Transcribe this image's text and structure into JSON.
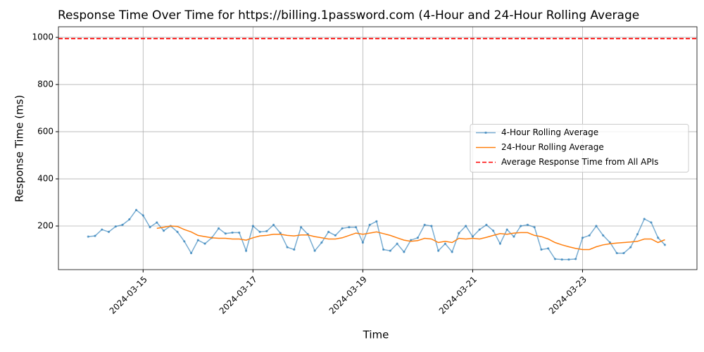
{
  "chart_data": {
    "type": "line",
    "title": "Response Time Over Time for https://billing.1password.com (4-Hour and 24-Hour Rolling Average",
    "x_label": "Time",
    "y_label": "Response Time (ms)",
    "x": [
      "2024-03-14T00:00",
      "2024-03-14T03:00",
      "2024-03-14T06:00",
      "2024-03-14T09:00",
      "2024-03-14T12:00",
      "2024-03-14T15:00",
      "2024-03-14T18:00",
      "2024-03-14T21:00",
      "2024-03-15T00:00",
      "2024-03-15T03:00",
      "2024-03-15T06:00",
      "2024-03-15T09:00",
      "2024-03-15T12:00",
      "2024-03-15T15:00",
      "2024-03-15T18:00",
      "2024-03-15T21:00",
      "2024-03-16T00:00",
      "2024-03-16T03:00",
      "2024-03-16T06:00",
      "2024-03-16T09:00",
      "2024-03-16T12:00",
      "2024-03-16T15:00",
      "2024-03-16T18:00",
      "2024-03-16T21:00",
      "2024-03-17T00:00",
      "2024-03-17T03:00",
      "2024-03-17T06:00",
      "2024-03-17T09:00",
      "2024-03-17T12:00",
      "2024-03-17T15:00",
      "2024-03-17T18:00",
      "2024-03-17T21:00",
      "2024-03-18T00:00",
      "2024-03-18T03:00",
      "2024-03-18T06:00",
      "2024-03-18T09:00",
      "2024-03-18T12:00",
      "2024-03-18T15:00",
      "2024-03-18T18:00",
      "2024-03-18T21:00",
      "2024-03-19T00:00",
      "2024-03-19T03:00",
      "2024-03-19T06:00",
      "2024-03-19T09:00",
      "2024-03-19T12:00",
      "2024-03-19T15:00",
      "2024-03-19T18:00",
      "2024-03-19T21:00",
      "2024-03-20T00:00",
      "2024-03-20T03:00",
      "2024-03-20T06:00",
      "2024-03-20T09:00",
      "2024-03-20T12:00",
      "2024-03-20T15:00",
      "2024-03-20T18:00",
      "2024-03-20T21:00",
      "2024-03-21T00:00",
      "2024-03-21T03:00",
      "2024-03-21T06:00",
      "2024-03-21T09:00",
      "2024-03-21T12:00",
      "2024-03-21T15:00",
      "2024-03-21T18:00",
      "2024-03-21T21:00",
      "2024-03-22T00:00",
      "2024-03-22T03:00",
      "2024-03-22T06:00",
      "2024-03-22T09:00",
      "2024-03-22T12:00",
      "2024-03-22T15:00",
      "2024-03-22T18:00",
      "2024-03-22T21:00",
      "2024-03-23T00:00",
      "2024-03-23T03:00",
      "2024-03-23T06:00",
      "2024-03-23T09:00",
      "2024-03-23T12:00",
      "2024-03-23T15:00",
      "2024-03-23T18:00",
      "2024-03-23T21:00",
      "2024-03-24T00:00",
      "2024-03-24T03:00",
      "2024-03-24T06:00",
      "2024-03-24T09:00",
      "2024-03-24T12:00"
    ],
    "series": [
      {
        "name": "4-Hour Rolling Average",
        "color": "#1f77b4",
        "marker": true,
        "values": [
          155,
          158,
          185,
          175,
          198,
          205,
          228,
          268,
          245,
          195,
          215,
          180,
          200,
          175,
          135,
          85,
          140,
          125,
          150,
          190,
          168,
          172,
          172,
          95,
          200,
          175,
          178,
          205,
          170,
          110,
          100,
          195,
          165,
          95,
          130,
          175,
          160,
          190,
          195,
          195,
          130,
          205,
          220,
          100,
          95,
          125,
          90,
          140,
          150,
          205,
          200,
          95,
          125,
          90,
          170,
          200,
          155,
          185,
          205,
          180,
          125,
          185,
          155,
          200,
          205,
          195,
          100,
          105,
          60,
          58,
          58,
          60,
          150,
          160,
          200,
          160,
          130,
          85,
          85,
          110,
          165,
          230,
          215,
          150,
          120
        ]
      },
      {
        "name": "24-Hour Rolling Average",
        "color": "#ff7f0e",
        "marker": false,
        "values": [
          null,
          null,
          null,
          null,
          null,
          null,
          null,
          null,
          null,
          null,
          190,
          195,
          200,
          198,
          185,
          175,
          160,
          155,
          150,
          148,
          148,
          145,
          145,
          140,
          150,
          158,
          160,
          165,
          165,
          160,
          158,
          162,
          162,
          155,
          150,
          145,
          145,
          150,
          160,
          170,
          165,
          170,
          175,
          168,
          160,
          150,
          140,
          135,
          138,
          148,
          145,
          130,
          135,
          130,
          148,
          145,
          148,
          145,
          152,
          160,
          168,
          165,
          170,
          172,
          172,
          160,
          155,
          145,
          130,
          120,
          112,
          105,
          100,
          100,
          112,
          120,
          125,
          128,
          130,
          132,
          135,
          145,
          145,
          130,
          142
        ]
      }
    ],
    "hline": {
      "name": "Average Response Time from All APIs",
      "value": 995,
      "color": "red"
    },
    "xlim": [
      "2024-03-13T11:00",
      "2024-03-25T02:00"
    ],
    "xticks": [
      "2024-03-15",
      "2024-03-17",
      "2024-03-19",
      "2024-03-21",
      "2024-03-23"
    ],
    "ylim": [
      15,
      1045
    ],
    "yticks": [
      200,
      400,
      600,
      800,
      1000
    ],
    "grid": true,
    "legend": "center right"
  }
}
